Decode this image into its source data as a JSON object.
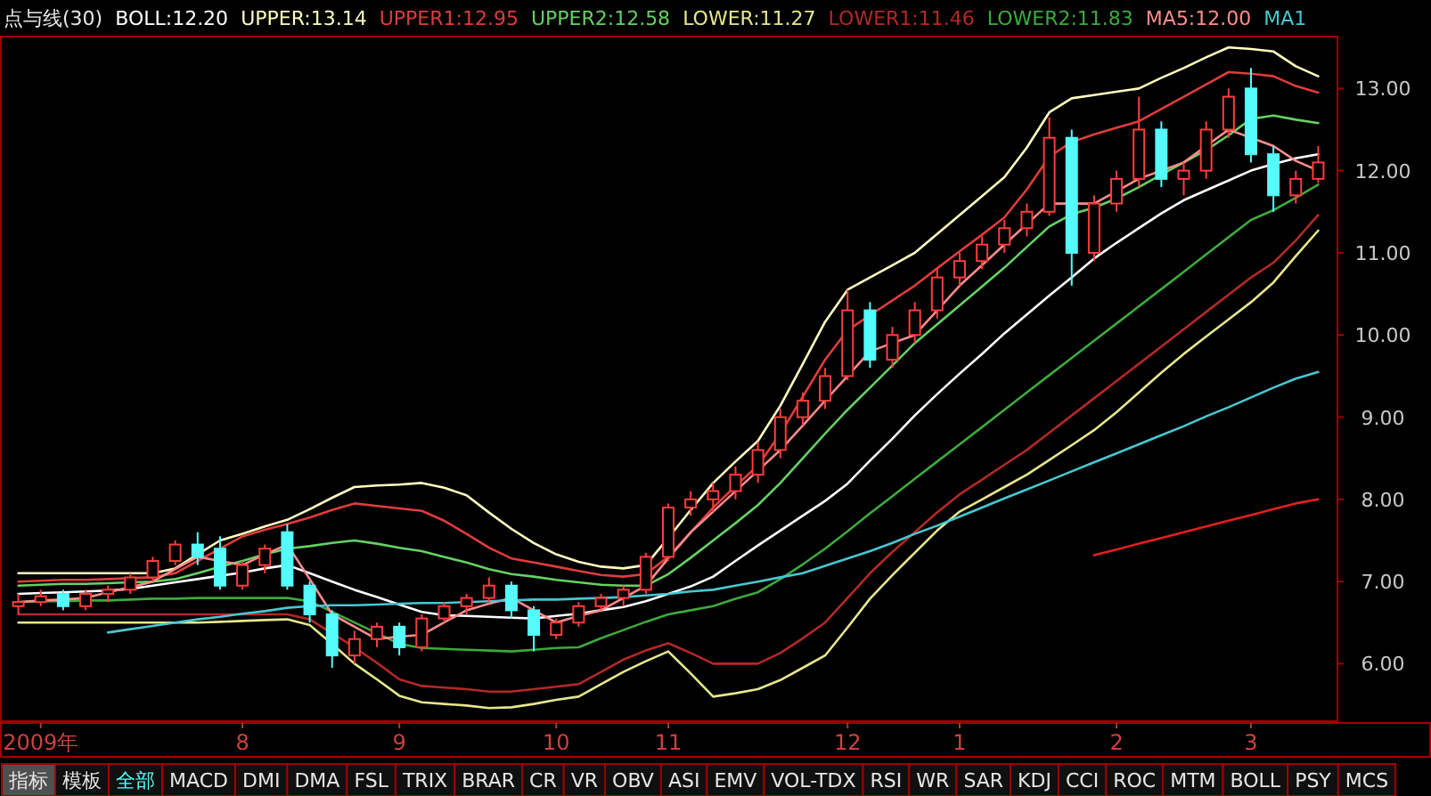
{
  "chart_data": {
    "type": "candlestick",
    "title": "点与线(30)",
    "categories": [
      null,
      "2009年",
      null,
      null,
      null,
      null,
      null,
      null,
      null,
      null,
      "8",
      null,
      null,
      null,
      null,
      null,
      null,
      "9",
      null,
      null,
      null,
      null,
      null,
      null,
      "10",
      null,
      null,
      null,
      null,
      "11",
      null,
      null,
      null,
      null,
      null,
      null,
      null,
      "12",
      null,
      null,
      null,
      null,
      "1",
      null,
      null,
      null,
      null,
      null,
      null,
      "2",
      null,
      null,
      null,
      null,
      null,
      "3",
      null,
      null,
      null
    ],
    "ohlc": [
      [
        6.7,
        6.85,
        6.6,
        6.75
      ],
      [
        6.75,
        6.9,
        6.7,
        6.82
      ],
      [
        6.85,
        6.9,
        6.65,
        6.7
      ],
      [
        6.7,
        6.9,
        6.65,
        6.85
      ],
      [
        6.85,
        6.95,
        6.75,
        6.9
      ],
      [
        6.9,
        7.1,
        6.85,
        7.05
      ],
      [
        7.05,
        7.3,
        7.0,
        7.25
      ],
      [
        7.25,
        7.5,
        7.2,
        7.45
      ],
      [
        7.45,
        7.6,
        7.2,
        7.3
      ],
      [
        7.4,
        7.55,
        6.9,
        6.95
      ],
      [
        6.95,
        7.25,
        6.9,
        7.2
      ],
      [
        7.2,
        7.45,
        7.1,
        7.4
      ],
      [
        7.6,
        7.7,
        6.9,
        6.95
      ],
      [
        6.95,
        7.0,
        6.5,
        6.6
      ],
      [
        6.6,
        6.65,
        5.95,
        6.1
      ],
      [
        6.1,
        6.4,
        6.0,
        6.3
      ],
      [
        6.3,
        6.5,
        6.2,
        6.45
      ],
      [
        6.45,
        6.5,
        6.1,
        6.2
      ],
      [
        6.2,
        6.6,
        6.15,
        6.55
      ],
      [
        6.55,
        6.75,
        6.5,
        6.7
      ],
      [
        6.7,
        6.85,
        6.6,
        6.8
      ],
      [
        6.8,
        7.05,
        6.75,
        6.95
      ],
      [
        6.95,
        7.0,
        6.55,
        6.65
      ],
      [
        6.65,
        6.7,
        6.15,
        6.35
      ],
      [
        6.35,
        6.55,
        6.3,
        6.5
      ],
      [
        6.5,
        6.75,
        6.45,
        6.7
      ],
      [
        6.7,
        6.85,
        6.65,
        6.8
      ],
      [
        6.8,
        6.95,
        6.7,
        6.9
      ],
      [
        6.9,
        7.35,
        6.85,
        7.3
      ],
      [
        7.3,
        7.95,
        7.25,
        7.9
      ],
      [
        7.9,
        8.1,
        7.8,
        8.0
      ],
      [
        8.0,
        8.2,
        7.85,
        8.1
      ],
      [
        8.1,
        8.4,
        8.0,
        8.3
      ],
      [
        8.3,
        8.7,
        8.2,
        8.6
      ],
      [
        8.6,
        9.1,
        8.5,
        9.0
      ],
      [
        9.0,
        9.3,
        8.9,
        9.2
      ],
      [
        9.2,
        9.6,
        9.1,
        9.5
      ],
      [
        9.5,
        10.55,
        9.45,
        10.3
      ],
      [
        10.3,
        10.4,
        9.6,
        9.7
      ],
      [
        9.7,
        10.1,
        9.6,
        10.0
      ],
      [
        10.0,
        10.4,
        9.9,
        10.3
      ],
      [
        10.3,
        10.8,
        10.2,
        10.7
      ],
      [
        10.7,
        11.0,
        10.6,
        10.9
      ],
      [
        10.9,
        11.2,
        10.8,
        11.1
      ],
      [
        11.1,
        11.4,
        11.0,
        11.3
      ],
      [
        11.3,
        11.6,
        11.2,
        11.5
      ],
      [
        11.5,
        12.65,
        11.45,
        12.4
      ],
      [
        12.4,
        12.5,
        10.6,
        11.0
      ],
      [
        11.0,
        11.7,
        10.9,
        11.6
      ],
      [
        11.6,
        12.0,
        11.5,
        11.9
      ],
      [
        11.9,
        12.9,
        11.8,
        12.5
      ],
      [
        12.5,
        12.6,
        11.8,
        11.9
      ],
      [
        11.9,
        12.1,
        11.7,
        12.0
      ],
      [
        12.0,
        12.6,
        11.9,
        12.5
      ],
      [
        12.5,
        13.0,
        12.4,
        12.9
      ],
      [
        13.0,
        13.25,
        12.1,
        12.2
      ],
      [
        12.2,
        12.3,
        11.5,
        11.7
      ],
      [
        11.7,
        12.0,
        11.6,
        11.9
      ],
      [
        11.9,
        12.3,
        11.85,
        12.1
      ]
    ],
    "colors": [
      "#ff3c3c",
      "#ff3c3c",
      "#54fcfc",
      "#ff3c3c",
      "#ff3c3c",
      "#ff3c3c",
      "#ff3c3c",
      "#ff3c3c",
      "#54fcfc",
      "#54fcfc",
      "#ff3c3c",
      "#ff3c3c",
      "#54fcfc",
      "#54fcfc",
      "#54fcfc",
      "#ff3c3c",
      "#ff3c3c",
      "#54fcfc",
      "#ff3c3c",
      "#ff3c3c",
      "#ff3c3c",
      "#ff3c3c",
      "#54fcfc",
      "#54fcfc",
      "#ff3c3c",
      "#ff3c3c",
      "#ff3c3c",
      "#ff3c3c",
      "#ff3c3c",
      "#ff3c3c",
      "#ff3c3c",
      "#ff3c3c",
      "#ff3c3c",
      "#ff3c3c",
      "#ff3c3c",
      "#ff3c3c",
      "#ff3c3c",
      "#ff3c3c",
      "#54fcfc",
      "#ff3c3c",
      "#ff3c3c",
      "#ff3c3c",
      "#ff3c3c",
      "#ff3c3c",
      "#ff3c3c",
      "#ff3c3c",
      "#ff3c3c",
      "#54fcfc",
      "#ff3c3c",
      "#ff3c3c",
      "#ff3c3c",
      "#54fcfc",
      "#ff3c3c",
      "#ff3c3c",
      "#ff3c3c",
      "#54fcfc",
      "#54fcfc",
      "#ff3c3c",
      "#ff3c3c"
    ],
    "series": [
      {
        "type": "line",
        "name": "BOLL:12.20",
        "color": "#ffffff",
        "values": [
          6.85,
          6.86,
          6.87,
          6.88,
          6.89,
          6.91,
          6.95,
          6.99,
          7.03,
          7.07,
          7.11,
          7.16,
          7.2,
          7.1,
          7.0,
          6.9,
          6.81,
          6.72,
          6.63,
          6.59,
          6.58,
          6.57,
          6.56,
          6.55,
          6.58,
          6.61,
          6.65,
          6.69,
          6.76,
          6.85,
          6.94,
          7.06,
          7.25,
          7.44,
          7.62,
          7.8,
          7.98,
          8.19,
          8.47,
          8.74,
          9.02,
          9.28,
          9.53,
          9.77,
          10.02,
          10.25,
          10.48,
          10.7,
          10.93,
          11.12,
          11.3,
          11.48,
          11.64,
          11.76,
          11.88,
          12.0,
          12.08,
          12.15,
          12.2
        ]
      },
      {
        "type": "line",
        "name": "UPPER:13.14",
        "color": "#ffffc0",
        "values": [
          7.1,
          7.1,
          7.1,
          7.1,
          7.1,
          7.1,
          7.1,
          7.16,
          7.33,
          7.5,
          7.58,
          7.67,
          7.75,
          7.88,
          8.02,
          8.15,
          8.17,
          8.18,
          8.2,
          8.14,
          8.05,
          7.84,
          7.64,
          7.47,
          7.33,
          7.24,
          7.18,
          7.16,
          7.2,
          7.53,
          7.87,
          8.2,
          8.46,
          8.71,
          9.14,
          9.65,
          10.16,
          10.55,
          10.7,
          10.85,
          11.0,
          11.23,
          11.46,
          11.69,
          11.92,
          12.28,
          12.71,
          12.88,
          12.92,
          12.96,
          13.0,
          13.13,
          13.25,
          13.38,
          13.5,
          13.48,
          13.45,
          13.27,
          13.15
        ]
      },
      {
        "type": "line",
        "name": "UPPER1:12.95",
        "color": "#e03c3c",
        "values": [
          7.0,
          7.01,
          7.02,
          7.02,
          7.03,
          7.04,
          7.05,
          7.1,
          7.25,
          7.4,
          7.55,
          7.63,
          7.7,
          7.78,
          7.87,
          7.95,
          7.92,
          7.89,
          7.86,
          7.74,
          7.58,
          7.41,
          7.28,
          7.23,
          7.18,
          7.13,
          7.08,
          7.06,
          7.09,
          7.3,
          7.6,
          7.9,
          8.16,
          8.41,
          8.8,
          9.25,
          9.7,
          10.06,
          10.24,
          10.42,
          10.6,
          10.81,
          11.02,
          11.22,
          11.43,
          11.77,
          12.17,
          12.35,
          12.44,
          12.52,
          12.6,
          12.75,
          12.9,
          13.05,
          13.2,
          13.18,
          13.15,
          13.03,
          12.95
        ]
      },
      {
        "type": "line",
        "name": "UPPER2:12.58",
        "color": "#64d264",
        "values": [
          6.95,
          6.96,
          6.97,
          6.97,
          6.98,
          6.99,
          7.0,
          7.03,
          7.1,
          7.18,
          7.25,
          7.33,
          7.4,
          7.43,
          7.47,
          7.5,
          7.46,
          7.41,
          7.37,
          7.3,
          7.23,
          7.15,
          7.09,
          7.06,
          7.02,
          6.99,
          6.96,
          6.95,
          6.95,
          7.09,
          7.29,
          7.5,
          7.71,
          7.93,
          8.2,
          8.5,
          8.8,
          9.09,
          9.36,
          9.63,
          9.9,
          10.13,
          10.36,
          10.59,
          10.82,
          11.07,
          11.32,
          11.47,
          11.55,
          11.66,
          11.8,
          11.95,
          12.1,
          12.25,
          12.43,
          12.63,
          12.67,
          12.62,
          12.58
        ]
      },
      {
        "type": "line",
        "name": "LOWER:11.27",
        "color": "#e6e68c",
        "values": [
          6.5,
          6.5,
          6.5,
          6.5,
          6.5,
          6.5,
          6.5,
          6.5,
          6.5,
          6.51,
          6.52,
          6.53,
          6.54,
          6.47,
          6.24,
          6.0,
          5.81,
          5.61,
          5.53,
          5.51,
          5.49,
          5.46,
          5.47,
          5.51,
          5.56,
          5.6,
          5.75,
          5.9,
          6.03,
          6.15,
          5.88,
          5.6,
          5.64,
          5.69,
          5.8,
          5.95,
          6.1,
          6.44,
          6.79,
          7.08,
          7.35,
          7.62,
          7.85,
          8.0,
          8.15,
          8.3,
          8.48,
          8.66,
          8.84,
          9.06,
          9.3,
          9.54,
          9.77,
          9.98,
          10.19,
          10.4,
          10.64,
          10.96,
          11.27
        ]
      },
      {
        "type": "line",
        "name": "LOWER1:11.46",
        "color": "#b42828",
        "values": [
          6.6,
          6.6,
          6.6,
          6.6,
          6.6,
          6.6,
          6.6,
          6.6,
          6.6,
          6.6,
          6.6,
          6.6,
          6.6,
          6.54,
          6.37,
          6.2,
          6.01,
          5.81,
          5.73,
          5.71,
          5.69,
          5.66,
          5.66,
          5.69,
          5.72,
          5.75,
          5.9,
          6.05,
          6.16,
          6.25,
          6.13,
          6.0,
          6.0,
          6.0,
          6.13,
          6.31,
          6.5,
          6.8,
          7.1,
          7.36,
          7.6,
          7.84,
          8.06,
          8.24,
          8.42,
          8.6,
          8.81,
          9.02,
          9.23,
          9.44,
          9.65,
          9.86,
          10.07,
          10.28,
          10.49,
          10.7,
          10.88,
          11.15,
          11.46
        ]
      },
      {
        "type": "line",
        "name": "LOWER2:11.83",
        "color": "#3caa3c",
        "values": [
          6.75,
          6.76,
          6.76,
          6.77,
          6.77,
          6.78,
          6.79,
          6.79,
          6.8,
          6.8,
          6.8,
          6.8,
          6.8,
          6.76,
          6.63,
          6.5,
          6.37,
          6.24,
          6.19,
          6.18,
          6.17,
          6.16,
          6.15,
          6.17,
          6.19,
          6.2,
          6.31,
          6.41,
          6.51,
          6.6,
          6.65,
          6.7,
          6.79,
          6.87,
          7.03,
          7.21,
          7.4,
          7.61,
          7.83,
          8.04,
          8.25,
          8.46,
          8.67,
          8.88,
          9.09,
          9.3,
          9.51,
          9.72,
          9.93,
          10.14,
          10.35,
          10.56,
          10.77,
          10.98,
          11.19,
          11.4,
          11.52,
          11.67,
          11.83
        ]
      },
      {
        "type": "line",
        "name": "MA5:12.00",
        "color": "#ff8c8c",
        "values": [
          6.75,
          6.77,
          6.78,
          6.8,
          6.87,
          6.93,
          7.0,
          7.15,
          7.3,
          7.25,
          7.2,
          7.33,
          7.45,
          7.03,
          6.6,
          6.45,
          6.3,
          6.33,
          6.35,
          6.5,
          6.65,
          6.73,
          6.8,
          6.65,
          6.5,
          6.58,
          6.65,
          6.8,
          6.95,
          7.28,
          7.6,
          7.85,
          8.1,
          8.35,
          8.6,
          8.9,
          9.2,
          9.5,
          9.8,
          9.9,
          10.0,
          10.3,
          10.6,
          10.85,
          11.1,
          11.35,
          11.6,
          11.6,
          11.6,
          11.75,
          11.9,
          12.0,
          12.1,
          12.3,
          12.5,
          12.4,
          12.3,
          12.12,
          12.0
        ]
      },
      {
        "type": "line",
        "name": "MA1",
        "color": "#46c8d2",
        "values": [
          null,
          null,
          null,
          null,
          6.38,
          6.42,
          6.46,
          6.5,
          6.54,
          6.57,
          6.61,
          6.64,
          6.68,
          6.7,
          6.71,
          6.71,
          6.72,
          6.73,
          6.74,
          6.74,
          6.75,
          6.76,
          6.77,
          6.78,
          6.78,
          6.79,
          6.8,
          6.81,
          6.83,
          6.85,
          6.88,
          6.9,
          6.95,
          7.0,
          7.05,
          7.1,
          7.19,
          7.28,
          7.37,
          7.47,
          7.58,
          7.68,
          7.79,
          7.9,
          8.01,
          8.12,
          8.23,
          8.34,
          8.45,
          8.56,
          8.67,
          8.78,
          8.89,
          9.01,
          9.12,
          9.24,
          9.36,
          9.47,
          9.55
        ]
      },
      {
        "type": "line",
        "color": "#e61e1e",
        "values": [
          null,
          null,
          null,
          null,
          null,
          null,
          null,
          null,
          null,
          null,
          null,
          null,
          null,
          null,
          null,
          null,
          null,
          null,
          null,
          null,
          null,
          null,
          null,
          null,
          null,
          null,
          null,
          null,
          null,
          null,
          null,
          null,
          null,
          null,
          null,
          null,
          null,
          null,
          null,
          null,
          null,
          null,
          null,
          null,
          null,
          null,
          null,
          null,
          7.32,
          7.39,
          7.46,
          7.53,
          7.6,
          7.67,
          7.74,
          7.81,
          7.88,
          7.95,
          8.0
        ]
      }
    ],
    "ylim": [
      5.3,
      13.6
    ],
    "yticks": [
      {
        "value": 6,
        "label": "6.00"
      },
      {
        "value": 7,
        "label": "7.00"
      },
      {
        "value": 8,
        "label": "8.00"
      },
      {
        "value": 9,
        "label": "9.00"
      },
      {
        "value": 10,
        "label": "10.00"
      },
      {
        "value": 11,
        "label": "11.00"
      },
      {
        "value": 12,
        "label": "12.00"
      },
      {
        "value": 13,
        "label": "13.00"
      }
    ],
    "legend": "top left",
    "annotations": [
      "指标",
      "模板",
      "全部",
      "MACD",
      "DMI",
      "DMA",
      "FSL",
      "TRIX",
      "BRAR",
      "CR",
      "VR",
      "OBV",
      "ASI",
      "EMV",
      "VOL-TDX",
      "RSI",
      "WR",
      "SAR",
      "KDJ",
      "CCI",
      "ROC",
      "MTM",
      "BOLL",
      "PSY",
      "MCS"
    ]
  }
}
